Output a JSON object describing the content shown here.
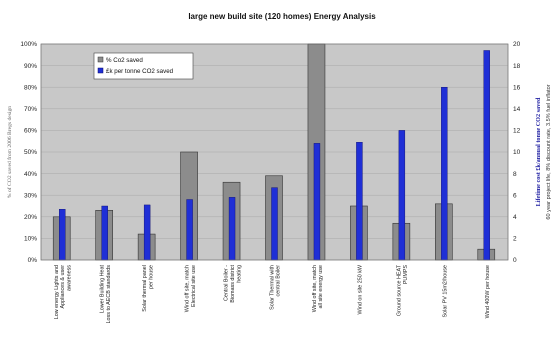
{
  "chart_data": {
    "type": "bar",
    "title": "large new build site (120 homes) Energy Analysis",
    "y_left": {
      "label": "% of CO2 saved from 2006 Bregs design",
      "ticks": [
        "0%",
        "10%",
        "20%",
        "30%",
        "40%",
        "50%",
        "60%",
        "70%",
        "80%",
        "90%",
        "100%"
      ],
      "range": [
        0,
        100
      ]
    },
    "y_right": {
      "label": "Lifetime cost £k/annual tonne CO2 saved",
      "label2": "60 year project life, 8% discount rate, 3.5% fuel inflator",
      "ticks": [
        "0",
        "2",
        "4",
        "6",
        "8",
        "10",
        "12",
        "14",
        "16",
        "18",
        "20"
      ],
      "range": [
        0,
        20
      ]
    },
    "categories": [
      "Low energy Lights and Appliances & user awareness",
      "Lower Building Heat Loss to AECB standards",
      "Solar thermal panel per house",
      "Wind off site, match Electrical site use",
      "Central Boiler - Biomass district heating",
      "Solar Thermal with central Boiler",
      "Wind off site, match all site energy use",
      "Wind on site 250 kW",
      "Ground source HEAT PUMPS",
      "Solar PV 15m2/house",
      "Wind 400W per house"
    ],
    "series": [
      {
        "name": "% Co2 saved",
        "axis": "left",
        "color": "#8c8c8c",
        "values": [
          20,
          23,
          12,
          50,
          36,
          39,
          100,
          25,
          17,
          26,
          5
        ]
      },
      {
        "name": "£k per tonne CO2 saved",
        "axis": "right",
        "color": "#1f2fd6",
        "values": [
          4.7,
          5.0,
          5.1,
          5.6,
          5.8,
          6.7,
          10.8,
          10.9,
          12.0,
          16.0,
          19.4
        ]
      }
    ],
    "legend": {
      "position": "top-left"
    },
    "grid": true
  }
}
